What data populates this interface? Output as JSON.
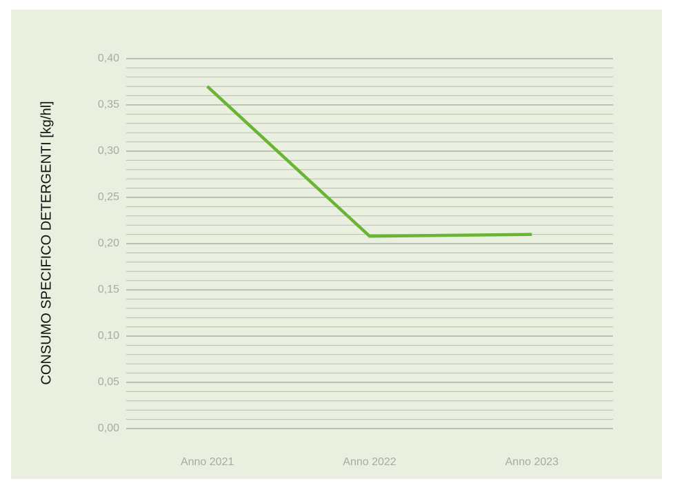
{
  "chart_data": {
    "type": "line",
    "y_axis_label": "CONSUMO SPECIFICO DETERGENTI [kg/hl]",
    "categories": [
      "Anno 2021",
      "Anno 2022",
      "Anno 2023"
    ],
    "series": [
      {
        "name": "Consumo specifico detergenti",
        "color": "#6ab434",
        "values": [
          0.37,
          0.208,
          0.21
        ]
      }
    ],
    "ylim": [
      0,
      0.4
    ],
    "yticks": [
      {
        "value": 0,
        "label": "0,00"
      },
      {
        "value": 0.05,
        "label": "0,05"
      },
      {
        "value": 0.1,
        "label": "0,10"
      },
      {
        "value": 0.15,
        "label": "0,15"
      },
      {
        "value": 0.2,
        "label": "0,20"
      },
      {
        "value": 0.25,
        "label": "0,25"
      },
      {
        "value": 0.3,
        "label": "0,30"
      },
      {
        "value": 0.35,
        "label": "0,35"
      },
      {
        "value": 0.4,
        "label": "0,40"
      }
    ],
    "grid": true,
    "minor_grid_divisions": 5
  }
}
